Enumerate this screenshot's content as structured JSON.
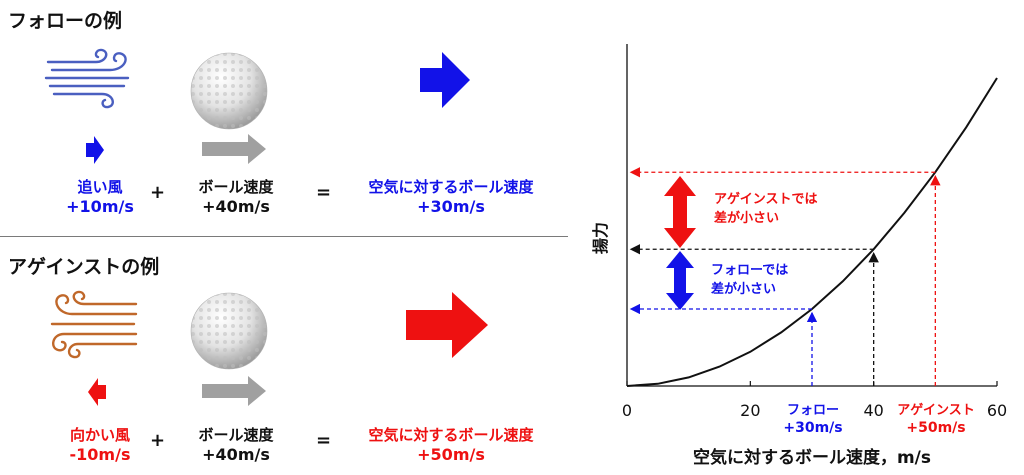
{
  "follow": {
    "heading": "フォローの例",
    "wind_label": "追い風",
    "wind_value": "+10m/s",
    "ball_label": "ボール速度",
    "ball_value": "+40m/s",
    "result_label": "空気に対するボール速度",
    "result_value": "+30m/s",
    "plus": "+",
    "equals": "="
  },
  "against": {
    "heading": "アゲインストの例",
    "wind_label": "向かい風",
    "wind_value": "-10m/s",
    "ball_label": "ボール速度",
    "ball_value": "+40m/s",
    "result_label": "空気に対するボール速度",
    "result_value": "+50m/s",
    "plus": "+",
    "equals": "="
  },
  "chart_data": {
    "type": "line",
    "xlabel": "空気に対するボール速度，m/s",
    "ylabel": "揚力",
    "xlim": [
      0,
      60
    ],
    "xticks": [
      0,
      20,
      40,
      60
    ],
    "x": [
      0,
      5,
      10,
      15,
      20,
      25,
      30,
      35,
      40,
      45,
      50,
      55,
      60
    ],
    "y": [
      0,
      0.007,
      0.028,
      0.063,
      0.111,
      0.174,
      0.25,
      0.34,
      0.444,
      0.563,
      0.694,
      0.84,
      1.0
    ],
    "markers": [
      {
        "x": 30,
        "label": "フォロー",
        "value": "+30m/s",
        "color": "#1212e8"
      },
      {
        "x": 40,
        "label": "",
        "value": "",
        "color": "#111111"
      },
      {
        "x": 50,
        "label": "アゲインスト",
        "value": "+50m/s",
        "color": "#ee1111"
      }
    ],
    "annotations": [
      {
        "line1": "アゲインストでは",
        "line2": "差が小さい",
        "color": "#ee1111"
      },
      {
        "line1": "フォローでは",
        "line2": "差が小さい",
        "color": "#1212e8"
      }
    ]
  },
  "colors": {
    "blue": "#1212e8",
    "red": "#ee1111",
    "gray_arrow": "#a0a0a0",
    "wind_blue": "#4a5fc0",
    "wind_brown": "#c0682a"
  },
  "icons": {
    "wind_follow": "wind-icon",
    "wind_against": "wind-icon",
    "ball": "golf-ball-icon"
  }
}
